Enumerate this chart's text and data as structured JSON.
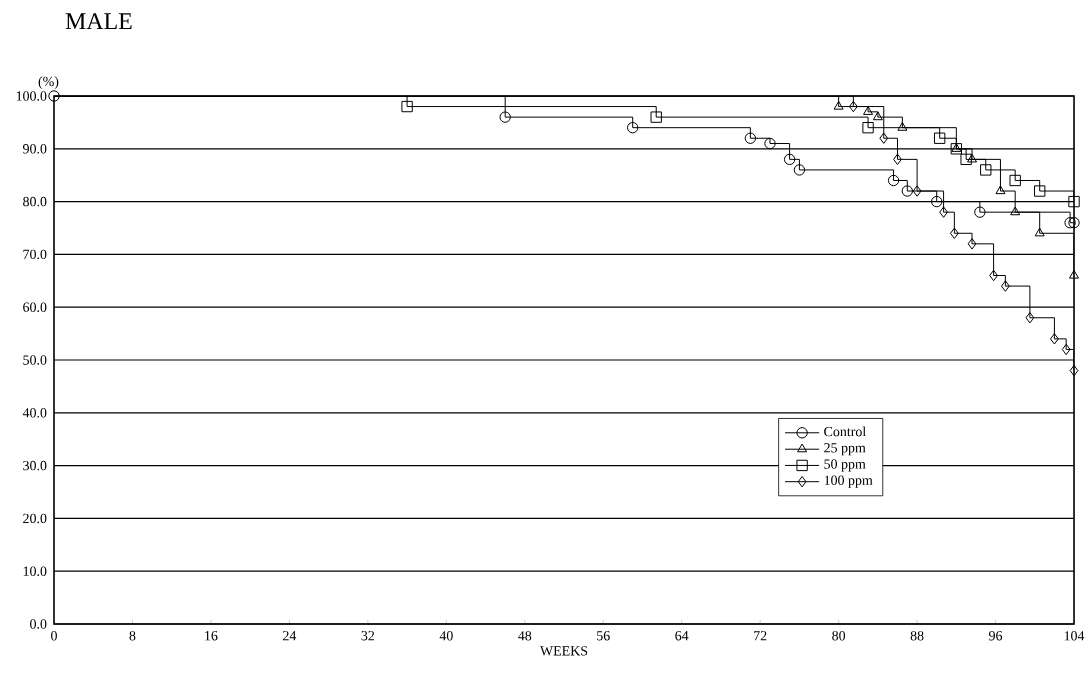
{
  "chart_data": {
    "type": "step",
    "title": "MALE",
    "xlabel": "WEEKS",
    "ylabel": "(%)",
    "xlim": [
      0,
      104
    ],
    "xticks": [
      0,
      8,
      16,
      24,
      32,
      40,
      48,
      56,
      64,
      72,
      80,
      88,
      96,
      104
    ],
    "ylim": [
      0,
      100
    ],
    "yticks": [
      {
        "value": 0,
        "label": "0.0"
      },
      {
        "value": 10,
        "label": "10.0"
      },
      {
        "value": 20,
        "label": "20.0"
      },
      {
        "value": 30,
        "label": "30.0"
      },
      {
        "value": 40,
        "label": "40.0"
      },
      {
        "value": 50,
        "label": "50.0"
      },
      {
        "value": 60,
        "label": "60.0"
      },
      {
        "value": 70,
        "label": "70.0"
      },
      {
        "value": 80,
        "label": "80.0"
      },
      {
        "value": 90,
        "label": "90.0"
      },
      {
        "value": 100,
        "label": "100.0"
      }
    ],
    "grid": "y",
    "legend": "right",
    "series": [
      {
        "name": "Control",
        "color": "#000000",
        "marker": "circle",
        "x": [
          0,
          46,
          59,
          71,
          73,
          75,
          76,
          85.6,
          87,
          90,
          94.4,
          103.6,
          104
        ],
        "values": [
          100,
          96,
          94,
          92,
          91,
          88,
          86,
          84,
          82,
          80,
          78,
          76,
          76
        ]
      },
      {
        "name": "25 ppm",
        "color": "#000000",
        "marker": "triangle",
        "x": [
          0,
          80,
          83,
          84,
          86.5,
          92,
          93.6,
          96.5,
          98,
          100.5,
          104
        ],
        "values": [
          100,
          98,
          97,
          96,
          94,
          90,
          88,
          82,
          78,
          74,
          66
        ]
      },
      {
        "name": "50 ppm",
        "color": "#000000",
        "marker": "square",
        "x": [
          0,
          36,
          61.4,
          83,
          90.3,
          92,
          93,
          95,
          98,
          100.5,
          104
        ],
        "values": [
          100,
          98,
          96,
          94,
          92,
          90,
          88,
          86,
          84,
          82,
          80
        ]
      },
      {
        "name": "100 ppm",
        "color": "#000000",
        "marker": "diamond",
        "x": [
          0,
          81.5,
          84.6,
          86,
          88,
          90.7,
          91.8,
          93.6,
          95.8,
          97,
          99.5,
          102,
          103.2,
          104
        ],
        "values": [
          100,
          98,
          92,
          88,
          82,
          78,
          74,
          72,
          66,
          64,
          58,
          54,
          52,
          48
        ]
      }
    ]
  }
}
